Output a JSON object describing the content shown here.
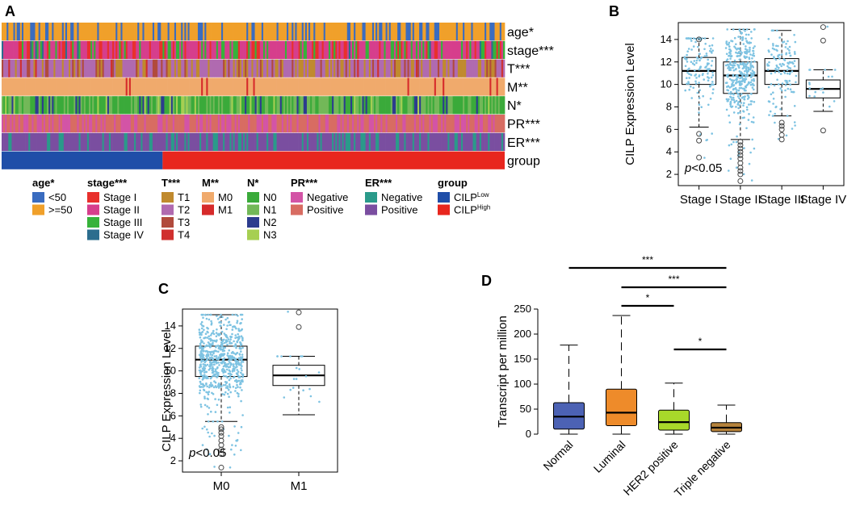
{
  "panel_labels": {
    "a": "A",
    "b": "B",
    "c": "C",
    "d": "D"
  },
  "colors": {
    "box_c": "#ffffff",
    "jitter": "#7ec3e2",
    "normal": "#4c62b4",
    "luminal": "#ee8b2a",
    "her2": "#a8d82a",
    "triple": "#b5823b"
  },
  "chart_data": [
    {
      "id": "A",
      "type": "heatmap",
      "title": "",
      "n_columns": 300,
      "group_split_fraction": 0.32,
      "tracks": [
        {
          "label": "age*",
          "key": "age"
        },
        {
          "label": "stage***",
          "key": "stage"
        },
        {
          "label": "T***",
          "key": "T"
        },
        {
          "label": "M**",
          "key": "M"
        },
        {
          "label": "N*",
          "key": "N"
        },
        {
          "label": "PR***",
          "key": "PR"
        },
        {
          "label": "ER***",
          "key": "ER"
        },
        {
          "label": "group",
          "key": "group"
        }
      ],
      "legend": [
        {
          "title": "age*",
          "items": [
            {
              "label": "<50",
              "color": "#3a6cc0"
            },
            {
              "label": ">=50",
              "color": "#f0a02a"
            }
          ]
        },
        {
          "title": "stage***",
          "items": [
            {
              "label": "Stage I",
              "color": "#e8302c"
            },
            {
              "label": "Stage II",
              "color": "#d63e8c"
            },
            {
              "label": "Stage III",
              "color": "#36b23a"
            },
            {
              "label": "Stage IV",
              "color": "#2c6d8e"
            }
          ]
        },
        {
          "title": "T***",
          "items": [
            {
              "label": "T1",
              "color": "#c08a2e"
            },
            {
              "label": "T2",
              "color": "#b06ab0"
            },
            {
              "label": "T3",
              "color": "#b14a3c"
            },
            {
              "label": "T4",
              "color": "#d0302e"
            }
          ]
        },
        {
          "title": "M**",
          "items": [
            {
              "label": "M0",
              "color": "#f0aa6c"
            },
            {
              "label": "M1",
              "color": "#d62a2a"
            }
          ]
        },
        {
          "title": "N*",
          "items": [
            {
              "label": "N0",
              "color": "#3aaa3a"
            },
            {
              "label": "N1",
              "color": "#72b858"
            },
            {
              "label": "N2",
              "color": "#2c3c8e"
            },
            {
              "label": "N3",
              "color": "#a6cf52"
            }
          ]
        },
        {
          "title": "PR***",
          "items": [
            {
              "label": "Negative",
              "color": "#d354a6"
            },
            {
              "label": "Positive",
              "color": "#d86c62"
            }
          ]
        },
        {
          "title": "ER***",
          "items": [
            {
              "label": "Negative",
              "color": "#2a9a8a"
            },
            {
              "label": "Positive",
              "color": "#7a4ea0"
            }
          ]
        },
        {
          "title": "group",
          "items": [
            {
              "label": "CILP",
              "sup": "Low",
              "color": "#1f4ea8"
            },
            {
              "label": "CILP",
              "sup": "High",
              "color": "#e8261e"
            }
          ]
        }
      ]
    },
    {
      "id": "B",
      "type": "box",
      "ylabel": "CILP Expression Level",
      "ylim": [
        1,
        15.5
      ],
      "yticks": [
        2,
        4,
        6,
        8,
        10,
        12,
        14
      ],
      "categories": [
        "Stage I",
        "Stage II",
        "Stage III",
        "Stage IV"
      ],
      "boxes": [
        {
          "min": 6.2,
          "q1": 10.0,
          "median": 11.2,
          "q3": 12.4,
          "max": 14.1,
          "outliers": [
            5.6,
            5.0,
            3.5,
            14.0
          ]
        },
        {
          "min": 5.1,
          "q1": 9.2,
          "median": 10.8,
          "q3": 12.0,
          "max": 14.9,
          "outliers": [
            4.9,
            4.6,
            4.3,
            4.0,
            3.7,
            3.4,
            3.0,
            2.6,
            2.3,
            2.0,
            1.4
          ]
        },
        {
          "min": 7.2,
          "q1": 10.0,
          "median": 11.2,
          "q3": 12.3,
          "max": 14.8,
          "outliers": [
            6.6,
            6.3,
            6.0,
            5.5,
            5.1
          ]
        },
        {
          "min": 7.6,
          "q1": 8.8,
          "median": 9.6,
          "q3": 10.4,
          "max": 11.3,
          "outliers": [
            15.1,
            13.9,
            5.9
          ]
        }
      ],
      "jitter_counts": [
        130,
        380,
        130,
        18
      ],
      "annotation": {
        "italic": "p",
        "text": "<0.05"
      }
    },
    {
      "id": "C",
      "type": "box",
      "ylabel": "CILP Expression Level",
      "ylim": [
        1,
        15.5
      ],
      "yticks": [
        2,
        4,
        6,
        8,
        10,
        12,
        14
      ],
      "categories": [
        "M0",
        "M1"
      ],
      "boxes": [
        {
          "min": 5.5,
          "q1": 9.5,
          "median": 11.0,
          "q3": 12.2,
          "max": 15.0,
          "outliers": [
            5.0,
            4.8,
            4.5,
            4.2,
            3.8,
            3.4,
            3.0,
            2.6,
            1.4
          ]
        },
        {
          "min": 6.1,
          "q1": 8.7,
          "median": 9.6,
          "q3": 10.5,
          "max": 11.3,
          "outliers": [
            15.2,
            13.9
          ]
        }
      ],
      "jitter_counts": [
        650,
        20
      ],
      "annotation": {
        "italic": "p",
        "text": "<0.05"
      }
    },
    {
      "id": "D",
      "type": "box",
      "ylabel": "Transcript per million",
      "ylim": [
        0,
        250
      ],
      "yticks": [
        0,
        50,
        100,
        150,
        200,
        250
      ],
      "categories": [
        "Normal",
        "Luminal",
        "HER2 positive",
        "Triple negative"
      ],
      "boxes": [
        {
          "min": 0,
          "q1": 10,
          "median": 35,
          "q3": 63,
          "max": 178
        },
        {
          "min": 0,
          "q1": 17,
          "median": 43,
          "q3": 90,
          "max": 237
        },
        {
          "min": 0,
          "q1": 8,
          "median": 24,
          "q3": 48,
          "max": 102
        },
        {
          "min": 0,
          "q1": 5,
          "median": 13,
          "q3": 23,
          "max": 58
        }
      ],
      "significance": [
        {
          "from": 0,
          "to": 3,
          "label": "***"
        },
        {
          "from": 1,
          "to": 3,
          "label": "***"
        },
        {
          "from": 1,
          "to": 2,
          "label": "*"
        },
        {
          "from": 2,
          "to": 3,
          "label": "*"
        }
      ]
    }
  ]
}
